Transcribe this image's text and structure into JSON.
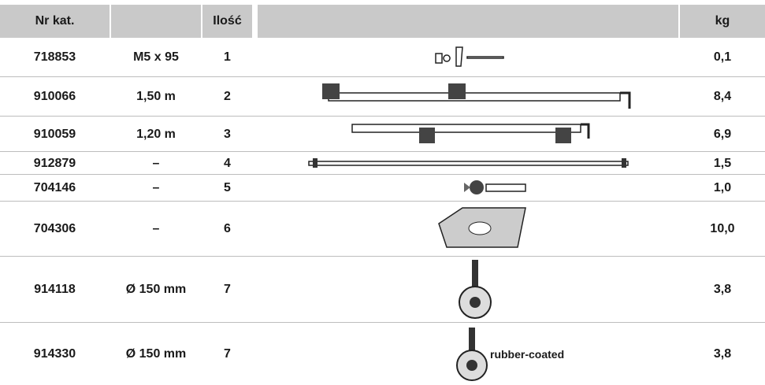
{
  "header": {
    "catalog": "Nr kat.",
    "qty": "Ilość",
    "weight": "kg"
  },
  "table": {
    "rows": [
      [
        "718853",
        "M5 x 95",
        "1",
        "0,1"
      ],
      [
        "910066",
        "1,50 m",
        "2",
        "8,4"
      ],
      [
        "910059",
        "1,20 m",
        "3",
        "6,9"
      ],
      [
        "912879",
        "–",
        "4",
        "1,5"
      ],
      [
        "704146",
        "–",
        "5",
        "1,0"
      ],
      [
        "704306",
        "–",
        "6",
        "10,0"
      ],
      [
        "914118",
        "Ø 150 mm",
        "7",
        "3,8"
      ],
      [
        "914330",
        "Ø 150 mm",
        "7",
        "3,8"
      ]
    ],
    "note": "rubber-coated"
  }
}
